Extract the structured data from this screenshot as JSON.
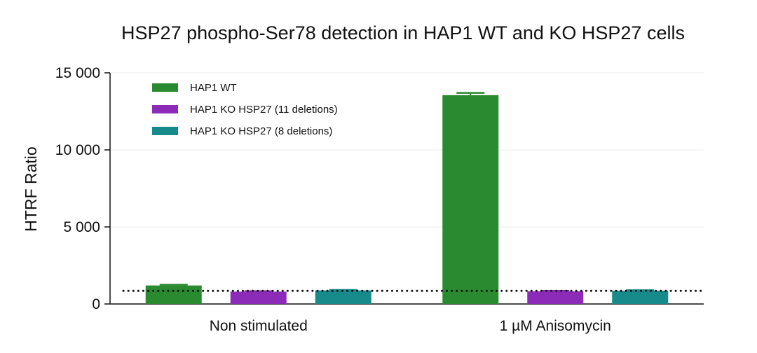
{
  "chart_data": {
    "type": "bar",
    "title": "HSP27 phospho-Ser78 detection in HAP1 WT and KO HSP27 cells",
    "xlabel": "",
    "ylabel": "HTRF Ratio",
    "ylim": [
      0,
      15000
    ],
    "yticks": [
      0,
      5000,
      10000,
      15000
    ],
    "ytick_labels": [
      "0",
      "5 000",
      "10 000",
      "15 000"
    ],
    "categories": [
      "Non stimulated",
      "1 µM Anisomycin"
    ],
    "series": [
      {
        "name": "HAP1 WT",
        "color": "#2a8a30",
        "values": [
          1200,
          13550
        ],
        "errors": [
          50,
          150
        ]
      },
      {
        "name": "HAP1 KO HSP27 (11 deletions)",
        "color": "#8b2bb8",
        "values": [
          800,
          820
        ],
        "errors": [
          30,
          30
        ]
      },
      {
        "name": "HAP1 KO HSP27 (8 deletions)",
        "color": "#178a8c",
        "values": [
          880,
          860
        ],
        "errors": [
          30,
          30
        ]
      }
    ],
    "reference_line": {
      "value": 850,
      "style": "dotted"
    },
    "grid": true,
    "legend_position": "top-left"
  }
}
